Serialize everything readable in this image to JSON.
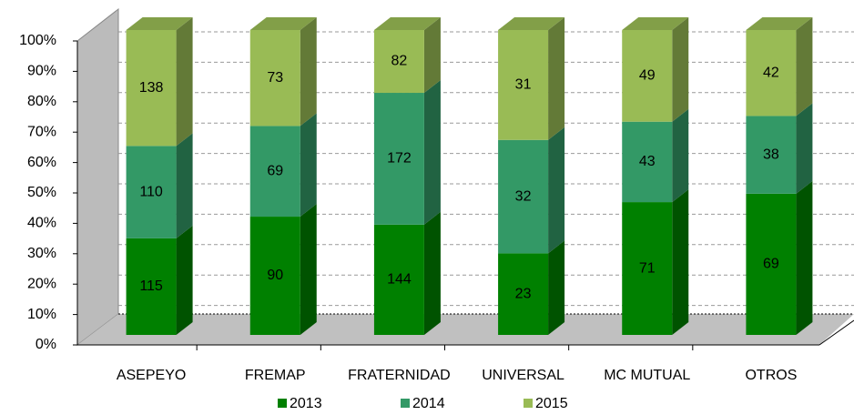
{
  "chart_data": {
    "type": "bar",
    "stacking": "percent",
    "categories": [
      "ASEPEYO",
      "FREMAP",
      "FRATERNIDAD",
      "UNIVERSAL",
      "MC MUTUAL",
      "OTROS"
    ],
    "series": [
      {
        "name": "2013",
        "color": "#008000",
        "values": [
          115,
          90,
          144,
          23,
          71,
          69
        ]
      },
      {
        "name": "2014",
        "color": "#339966",
        "values": [
          110,
          69,
          172,
          32,
          43,
          38
        ]
      },
      {
        "name": "2015",
        "color": "#99bb55",
        "values": [
          138,
          73,
          82,
          31,
          49,
          42
        ]
      }
    ],
    "ylim": [
      0,
      100
    ],
    "yticks": [
      {
        "value": 0,
        "label": "0%"
      },
      {
        "value": 10,
        "label": "10%"
      },
      {
        "value": 20,
        "label": "20%"
      },
      {
        "value": 30,
        "label": "30%"
      },
      {
        "value": 40,
        "label": "40%"
      },
      {
        "value": 50,
        "label": "50%"
      },
      {
        "value": 60,
        "label": "60%"
      },
      {
        "value": 70,
        "label": "70%"
      },
      {
        "value": 80,
        "label": "80%"
      },
      {
        "value": 90,
        "label": "90%"
      },
      {
        "value": 100,
        "label": "100%"
      }
    ],
    "grid": true,
    "legend": "bottom"
  }
}
